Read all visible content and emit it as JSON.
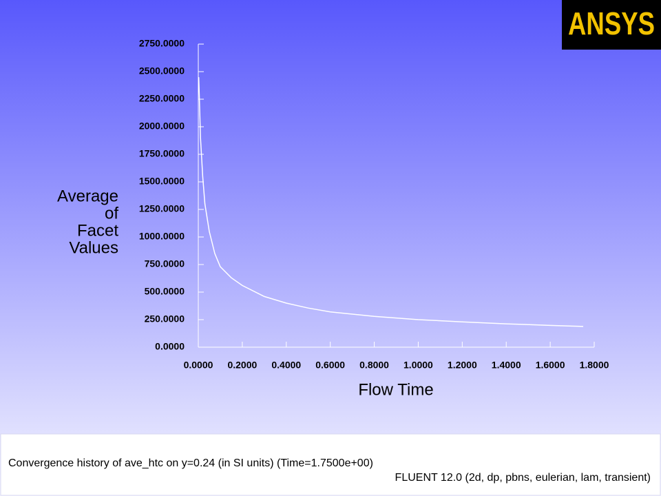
{
  "chart_data": {
    "type": "line",
    "x_label": "Flow Time",
    "y_label_lines": [
      "Average",
      "of",
      "Facet",
      "Values"
    ],
    "x": [
      0.002,
      0.005,
      0.01,
      0.02,
      0.03,
      0.05,
      0.075,
      0.1,
      0.15,
      0.2,
      0.3,
      0.4,
      0.5,
      0.6,
      0.8,
      1.0,
      1.2,
      1.4,
      1.6,
      1.75
    ],
    "series": [
      {
        "color": "#ffffff",
        "values": [
          2450,
          2250,
          1900,
          1550,
          1300,
          1050,
          850,
          730,
          630,
          560,
          460,
          400,
          355,
          320,
          280,
          250,
          230,
          212,
          198,
          188
        ]
      }
    ],
    "xlim": [
      0,
      1.8
    ],
    "ylim": [
      0,
      2750
    ],
    "xticks": [
      {
        "value": 0,
        "label": "0.0000"
      },
      {
        "value": 0.2,
        "label": "0.2000"
      },
      {
        "value": 0.4,
        "label": "0.4000"
      },
      {
        "value": 0.6,
        "label": "0.6000"
      },
      {
        "value": 0.8,
        "label": "0.8000"
      },
      {
        "value": 1.0,
        "label": "1.0000"
      },
      {
        "value": 1.2,
        "label": "1.2000"
      },
      {
        "value": 1.4,
        "label": "1.4000"
      },
      {
        "value": 1.6,
        "label": "1.6000"
      },
      {
        "value": 1.8,
        "label": "1.8000"
      }
    ],
    "yticks": [
      {
        "value": 0,
        "label": "0.0000"
      },
      {
        "value": 250,
        "label": "250.0000"
      },
      {
        "value": 500,
        "label": "500.0000"
      },
      {
        "value": 750,
        "label": "750.0000"
      },
      {
        "value": 1000,
        "label": "1000.0000"
      },
      {
        "value": 1250,
        "label": "1250.0000"
      },
      {
        "value": 1500,
        "label": "1500.0000"
      },
      {
        "value": 1750,
        "label": "1750.0000"
      },
      {
        "value": 2000,
        "label": "2000.0000"
      },
      {
        "value": 2250,
        "label": "2250.0000"
      },
      {
        "value": 2500,
        "label": "2500.0000"
      },
      {
        "value": 2750,
        "label": "2750.0000"
      }
    ],
    "grid": false
  },
  "logo": "ANSYS",
  "footer": {
    "caption": "Convergence history of ave_htc on y=0.24 (in SI units)  (Time=1.7500e+00)",
    "solver": "FLUENT 12.0 (2d, dp, pbns, eulerian, lam, transient)"
  }
}
